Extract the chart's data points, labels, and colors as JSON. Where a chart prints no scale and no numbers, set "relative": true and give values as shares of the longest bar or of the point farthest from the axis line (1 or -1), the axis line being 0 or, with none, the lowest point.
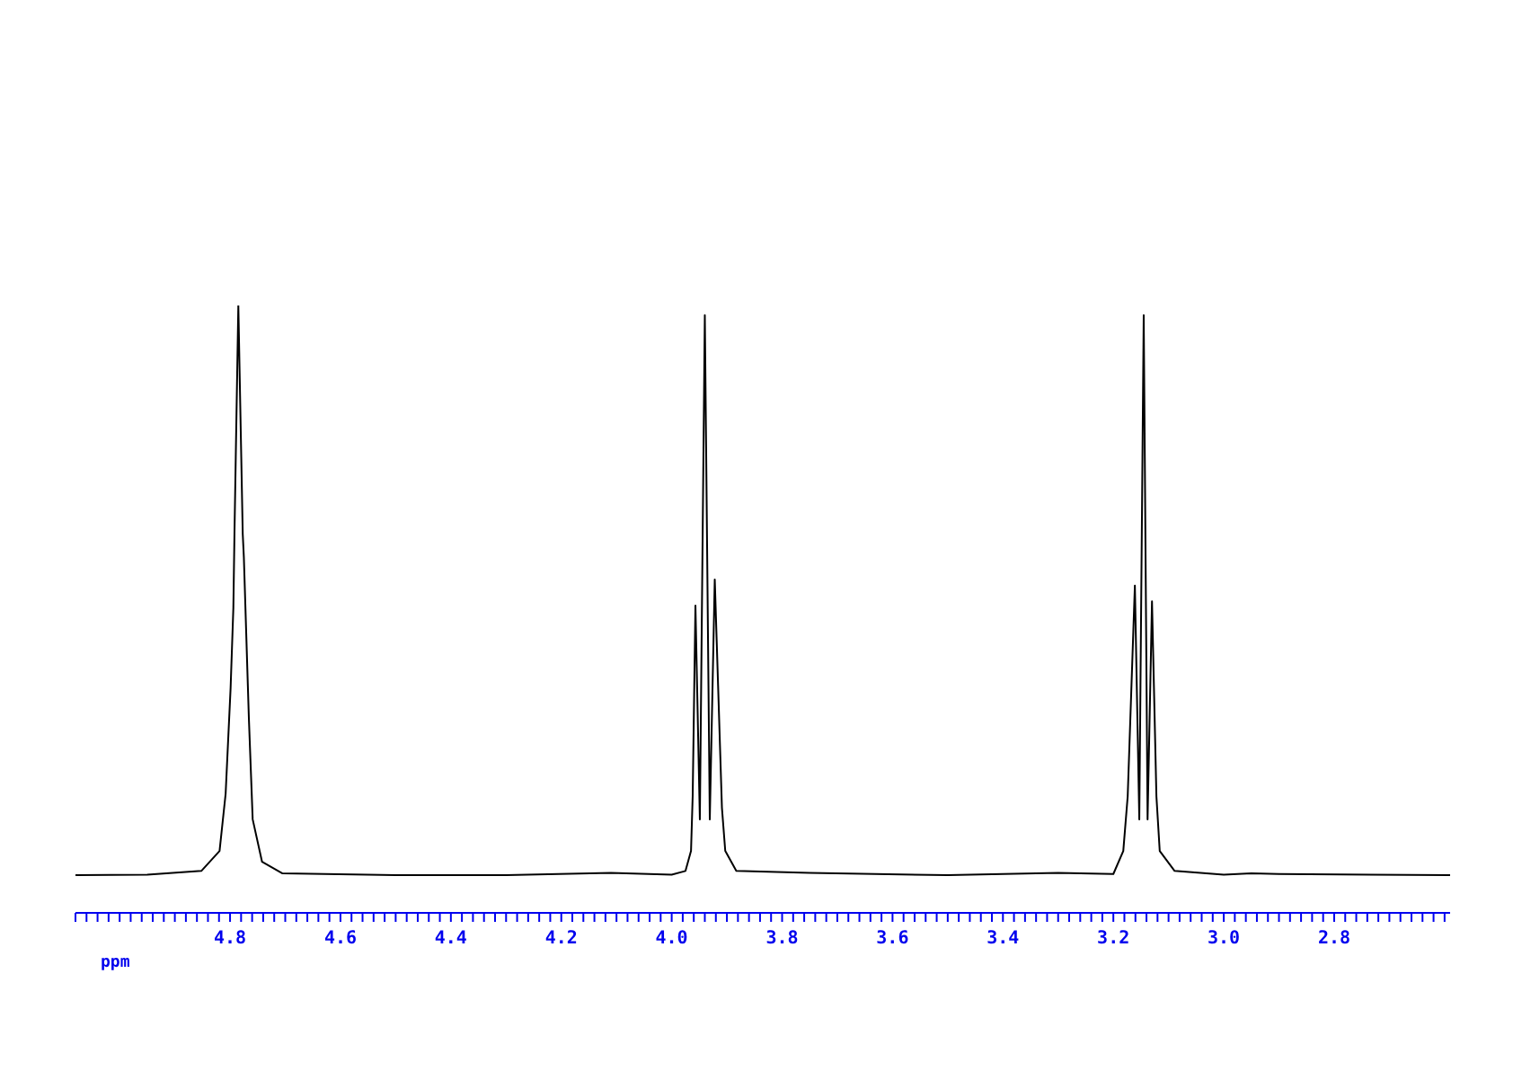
{
  "chart_data": {
    "type": "line",
    "xlabel": "ppm",
    "relative": true,
    "color": "#000000",
    "marker": "none",
    "x": [
      5.08,
      4.95,
      4.852,
      4.819,
      4.808,
      4.799,
      4.794,
      4.792,
      4.785,
      4.777,
      4.775,
      4.766,
      4.759,
      4.742,
      4.705,
      4.5,
      4.3,
      4.11,
      4.0,
      3.975,
      3.965,
      3.962,
      3.957,
      3.949,
      3.94,
      3.931,
      3.922,
      3.909,
      3.903,
      3.883,
      3.75,
      3.5,
      3.3,
      3.2,
      3.182,
      3.174,
      3.161,
      3.153,
      3.145,
      3.138,
      3.13,
      3.122,
      3.116,
      3.089,
      3.0,
      2.95,
      2.9,
      2.59
    ],
    "values": [
      0.062,
      0.063,
      0.069,
      0.102,
      0.196,
      0.37,
      0.502,
      0.624,
      1,
      0.624,
      0.586,
      0.323,
      0.154,
      0.084,
      0.065,
      0.062,
      0.062,
      0.066,
      0.063,
      0.069,
      0.102,
      0.192,
      0.506,
      0.154,
      0.984,
      0.154,
      0.549,
      0.173,
      0.102,
      0.069,
      0.066,
      0.062,
      0.066,
      0.064,
      0.102,
      0.192,
      0.539,
      0.154,
      0.984,
      0.154,
      0.513,
      0.192,
      0.102,
      0.069,
      0.063,
      0.065,
      0.064,
      0.062
    ],
    "xlim": [
      5.08,
      2.59
    ],
    "xticks": [
      {
        "value": 2.6,
        "label": null
      },
      {
        "value": 2.62,
        "label": null
      },
      {
        "value": 2.64,
        "label": null
      },
      {
        "value": 2.66,
        "label": null
      },
      {
        "value": 2.68,
        "label": null
      },
      {
        "value": 2.7,
        "label": null
      },
      {
        "value": 2.72,
        "label": null
      },
      {
        "value": 2.74,
        "label": null
      },
      {
        "value": 2.76,
        "label": null
      },
      {
        "value": 2.78,
        "label": null
      },
      2.8,
      {
        "value": 2.82,
        "label": null
      },
      {
        "value": 2.84,
        "label": null
      },
      {
        "value": 2.86,
        "label": null
      },
      {
        "value": 2.88,
        "label": null
      },
      {
        "value": 2.9,
        "label": null
      },
      {
        "value": 2.92,
        "label": null
      },
      {
        "value": 2.94,
        "label": null
      },
      {
        "value": 2.96,
        "label": null
      },
      {
        "value": 2.98,
        "label": null
      },
      {
        "value": 3.0,
        "label": "3.0"
      },
      {
        "value": 3.02,
        "label": null
      },
      {
        "value": 3.04,
        "label": null
      },
      {
        "value": 3.06,
        "label": null
      },
      {
        "value": 3.08,
        "label": null
      },
      {
        "value": 3.1,
        "label": null
      },
      {
        "value": 3.12,
        "label": null
      },
      {
        "value": 3.14,
        "label": null
      },
      {
        "value": 3.16,
        "label": null
      },
      {
        "value": 3.18,
        "label": null
      },
      3.2,
      {
        "value": 3.22,
        "label": null
      },
      {
        "value": 3.24,
        "label": null
      },
      {
        "value": 3.26,
        "label": null
      },
      {
        "value": 3.28,
        "label": null
      },
      {
        "value": 3.3,
        "label": null
      },
      {
        "value": 3.32,
        "label": null
      },
      {
        "value": 3.34,
        "label": null
      },
      {
        "value": 3.36,
        "label": null
      },
      {
        "value": 3.38,
        "label": null
      },
      3.4,
      {
        "value": 3.42,
        "label": null
      },
      {
        "value": 3.44,
        "label": null
      },
      {
        "value": 3.46,
        "label": null
      },
      {
        "value": 3.48,
        "label": null
      },
      {
        "value": 3.5,
        "label": null
      },
      {
        "value": 3.52,
        "label": null
      },
      {
        "value": 3.54,
        "label": null
      },
      {
        "value": 3.56,
        "label": null
      },
      {
        "value": 3.58,
        "label": null
      },
      3.6,
      {
        "value": 3.62,
        "label": null
      },
      {
        "value": 3.64,
        "label": null
      },
      {
        "value": 3.66,
        "label": null
      },
      {
        "value": 3.68,
        "label": null
      },
      {
        "value": 3.7,
        "label": null
      },
      {
        "value": 3.72,
        "label": null
      },
      {
        "value": 3.74,
        "label": null
      },
      {
        "value": 3.76,
        "label": null
      },
      {
        "value": 3.78,
        "label": null
      },
      3.8,
      {
        "value": 3.82,
        "label": null
      },
      {
        "value": 3.84,
        "label": null
      },
      {
        "value": 3.86,
        "label": null
      },
      {
        "value": 3.88,
        "label": null
      },
      {
        "value": 3.9,
        "label": null
      },
      {
        "value": 3.92,
        "label": null
      },
      {
        "value": 3.94,
        "label": null
      },
      {
        "value": 3.96,
        "label": null
      },
      {
        "value": 3.98,
        "label": null
      },
      {
        "value": 4.0,
        "label": "4.0"
      },
      {
        "value": 4.02,
        "label": null
      },
      {
        "value": 4.04,
        "label": null
      },
      {
        "value": 4.06,
        "label": null
      },
      {
        "value": 4.08,
        "label": null
      },
      {
        "value": 4.1,
        "label": null
      },
      {
        "value": 4.12,
        "label": null
      },
      {
        "value": 4.14,
        "label": null
      },
      {
        "value": 4.16,
        "label": null
      },
      {
        "value": 4.18,
        "label": null
      },
      4.2,
      {
        "value": 4.22,
        "label": null
      },
      {
        "value": 4.24,
        "label": null
      },
      {
        "value": 4.26,
        "label": null
      },
      {
        "value": 4.28,
        "label": null
      },
      {
        "value": 4.3,
        "label": null
      },
      {
        "value": 4.32,
        "label": null
      },
      {
        "value": 4.34,
        "label": null
      },
      {
        "value": 4.36,
        "label": null
      },
      {
        "value": 4.38,
        "label": null
      },
      4.4,
      {
        "value": 4.42,
        "label": null
      },
      {
        "value": 4.44,
        "label": null
      },
      {
        "value": 4.46,
        "label": null
      },
      {
        "value": 4.48,
        "label": null
      },
      {
        "value": 4.5,
        "label": null
      },
      {
        "value": 4.52,
        "label": null
      },
      {
        "value": 4.54,
        "label": null
      },
      {
        "value": 4.56,
        "label": null
      },
      {
        "value": 4.58,
        "label": null
      },
      4.6,
      {
        "value": 4.62,
        "label": null
      },
      {
        "value": 4.64,
        "label": null
      },
      {
        "value": 4.66,
        "label": null
      },
      {
        "value": 4.68,
        "label": null
      },
      {
        "value": 4.7,
        "label": null
      },
      {
        "value": 4.72,
        "label": null
      },
      {
        "value": 4.74,
        "label": null
      },
      {
        "value": 4.76,
        "label": null
      },
      {
        "value": 4.78,
        "label": null
      },
      4.8,
      {
        "value": 4.82,
        "label": null
      },
      {
        "value": 4.84,
        "label": null
      },
      {
        "value": 4.86,
        "label": null
      },
      {
        "value": 4.88,
        "label": null
      },
      {
        "value": 4.9,
        "label": null
      },
      {
        "value": 4.92,
        "label": null
      },
      {
        "value": 4.94,
        "label": null
      },
      {
        "value": 4.96,
        "label": null
      },
      {
        "value": 4.98,
        "label": null
      },
      {
        "value": 5.0,
        "label": null
      },
      {
        "value": 5.02,
        "label": null
      },
      {
        "value": 5.04,
        "label": null
      },
      {
        "value": 5.06,
        "label": null
      },
      {
        "value": 5.08,
        "label": null
      }
    ]
  }
}
